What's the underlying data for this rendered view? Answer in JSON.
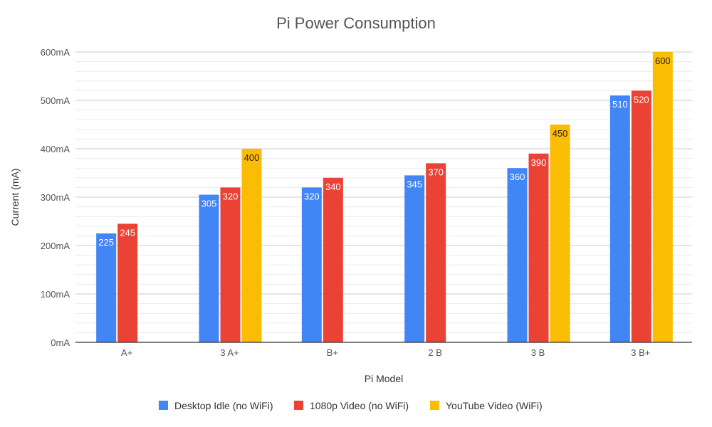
{
  "chart_data": {
    "type": "bar",
    "title": "Pi Power Consumption",
    "xlabel": "Pi Model",
    "ylabel": "Current (mA)",
    "categories": [
      "A+",
      "3 A+",
      "B+",
      "2 B",
      "3 B",
      "3 B+"
    ],
    "ylim": [
      0,
      600
    ],
    "yticks": [
      0,
      100,
      200,
      300,
      400,
      500,
      600
    ],
    "ytick_labels": [
      "0mA",
      "100mA",
      "200mA",
      "300mA",
      "400mA",
      "500mA",
      "600mA"
    ],
    "minor_grid_step": 20,
    "grid": true,
    "legend_position": "bottom",
    "series": [
      {
        "name": "Desktop Idle (no WiFi)",
        "color": "#4285f4",
        "label_style": "light",
        "values": [
          225,
          305,
          320,
          345,
          360,
          510
        ]
      },
      {
        "name": "1080p Video (no WiFi)",
        "color": "#ea4335",
        "label_style": "light",
        "values": [
          245,
          320,
          340,
          370,
          390,
          520
        ]
      },
      {
        "name": "YouTube Video (WiFi)",
        "color": "#fbbc04",
        "label_style": "dark",
        "values": [
          null,
          400,
          null,
          null,
          450,
          600
        ]
      }
    ]
  }
}
